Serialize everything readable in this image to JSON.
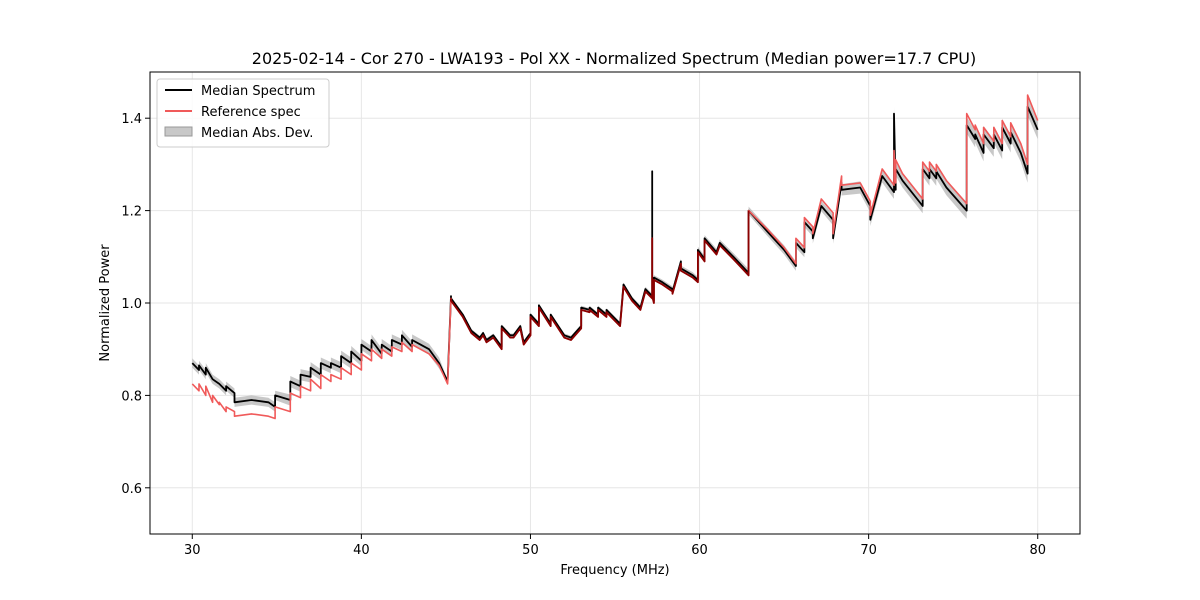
{
  "chart_data": {
    "type": "line",
    "title": "2025-02-14 - Cor 270 - LWA193 - Pol XX - Normalized Spectrum (Median power=17.7 CPU)",
    "xlabel": "Frequency (MHz)",
    "ylabel": "Normalized Power",
    "xlim": [
      27.5,
      82.5
    ],
    "ylim": [
      0.5,
      1.5
    ],
    "xticks": [
      30,
      40,
      50,
      60,
      70,
      80
    ],
    "xtick_labels": [
      "30",
      "40",
      "50",
      "60",
      "70",
      "80"
    ],
    "yticks": [
      0.6,
      0.8,
      1.0,
      1.2,
      1.4
    ],
    "ytick_labels": [
      "0.6",
      "0.8",
      "1.0",
      "1.2",
      "1.4"
    ],
    "grid": true,
    "legend_position": "top-left",
    "colors": {
      "median": "#000000",
      "reference": "#f05a5a",
      "mad_fill": "#b0b0b0",
      "overlap": "#8b0000"
    },
    "series": [
      {
        "name": "Median Spectrum",
        "x": [
          30.0,
          30.4,
          30.4,
          30.8,
          30.8,
          31.2,
          31.2,
          31.6,
          31.6,
          32.0,
          32.0,
          32.5,
          32.5,
          33.5,
          34.5,
          34.9,
          34.9,
          35.8,
          35.8,
          36.4,
          36.4,
          37.0,
          37.0,
          37.6,
          37.6,
          38.2,
          38.2,
          38.8,
          38.8,
          39.4,
          39.4,
          40.0,
          40.0,
          40.6,
          40.6,
          41.2,
          41.2,
          41.8,
          41.8,
          42.4,
          42.4,
          43.0,
          43.0,
          43.5,
          44.0,
          44.6,
          45.1,
          45.3,
          45.3,
          46.0,
          46.5,
          47.0,
          47.2,
          47.4,
          47.8,
          48.3,
          48.3,
          48.8,
          49.0,
          49.4,
          49.6,
          50.0,
          50.0,
          50.5,
          50.5,
          51.2,
          51.2,
          52.0,
          52.4,
          53.0,
          53.0,
          53.5,
          53.5,
          54.0,
          54.0,
          54.5,
          54.5,
          55.3,
          55.5,
          56.0,
          56.5,
          56.8,
          57.2,
          57.2,
          57.2,
          57.3,
          57.3,
          57.8,
          58.4,
          58.4,
          58.9,
          58.9,
          59.6,
          59.9,
          59.9,
          60.3,
          60.3,
          61.0,
          61.2,
          62.0,
          62.9,
          62.9,
          64.0,
          65.0,
          65.7,
          65.7,
          66.2,
          66.2,
          66.7,
          66.7,
          67.2,
          67.9,
          67.9,
          68.4,
          68.4,
          69.5,
          70.1,
          70.1,
          70.8,
          71.5,
          71.5,
          71.6,
          71.6,
          72.0,
          73.2,
          73.2,
          73.6,
          73.6,
          74.0,
          74.0,
          74.6,
          75.8,
          75.8,
          76.3,
          76.3,
          76.8,
          76.8,
          77.4,
          77.4,
          77.9,
          77.9,
          78.4,
          78.4,
          79.0,
          79.4,
          79.4,
          80.0
        ],
        "y": [
          0.87,
          0.855,
          0.865,
          0.845,
          0.86,
          0.835,
          0.835,
          0.825,
          0.825,
          0.81,
          0.82,
          0.805,
          0.785,
          0.79,
          0.785,
          0.775,
          0.8,
          0.79,
          0.83,
          0.82,
          0.845,
          0.84,
          0.86,
          0.845,
          0.87,
          0.86,
          0.87,
          0.86,
          0.885,
          0.87,
          0.895,
          0.875,
          0.91,
          0.895,
          0.92,
          0.89,
          0.91,
          0.895,
          0.92,
          0.91,
          0.93,
          0.905,
          0.92,
          0.91,
          0.9,
          0.87,
          0.83,
          1.015,
          1.01,
          0.975,
          0.94,
          0.925,
          0.935,
          0.92,
          0.93,
          0.905,
          0.95,
          0.93,
          0.93,
          0.95,
          0.915,
          0.935,
          0.975,
          0.955,
          0.995,
          0.955,
          0.975,
          0.93,
          0.925,
          0.95,
          0.99,
          0.985,
          0.99,
          0.975,
          0.99,
          0.975,
          0.985,
          0.955,
          1.04,
          1.01,
          0.99,
          1.03,
          1.015,
          1.285,
          1.02,
          1.005,
          1.055,
          1.045,
          1.03,
          1.025,
          1.09,
          1.075,
          1.06,
          1.05,
          1.115,
          1.095,
          1.14,
          1.11,
          1.13,
          1.1,
          1.065,
          1.2,
          1.155,
          1.115,
          1.08,
          1.13,
          1.11,
          1.175,
          1.155,
          1.14,
          1.21,
          1.18,
          1.14,
          1.26,
          1.245,
          1.25,
          1.21,
          1.18,
          1.275,
          1.24,
          1.41,
          1.245,
          1.29,
          1.265,
          1.21,
          1.29,
          1.27,
          1.29,
          1.27,
          1.285,
          1.25,
          1.2,
          1.385,
          1.355,
          1.365,
          1.325,
          1.365,
          1.335,
          1.365,
          1.33,
          1.38,
          1.345,
          1.37,
          1.325,
          1.28,
          1.425,
          1.375
        ]
      },
      {
        "name": "Reference spec",
        "x": [
          30.0,
          30.4,
          30.4,
          30.8,
          30.8,
          31.2,
          31.2,
          31.6,
          31.6,
          32.0,
          32.0,
          32.5,
          32.5,
          33.5,
          34.5,
          34.9,
          34.9,
          35.8,
          35.8,
          36.4,
          36.4,
          37.0,
          37.0,
          37.6,
          37.6,
          38.2,
          38.2,
          38.8,
          38.8,
          39.4,
          39.4,
          40.0,
          40.0,
          40.6,
          40.6,
          41.2,
          41.2,
          41.8,
          41.8,
          42.4,
          42.4,
          43.0,
          43.0,
          43.5,
          44.0,
          44.6,
          45.1,
          45.3,
          45.3,
          46.0,
          46.5,
          47.0,
          47.2,
          47.4,
          47.8,
          48.3,
          48.3,
          48.8,
          49.0,
          49.4,
          49.6,
          50.0,
          50.0,
          50.5,
          50.5,
          51.2,
          51.2,
          52.0,
          52.4,
          53.0,
          53.0,
          53.5,
          53.5,
          54.0,
          54.0,
          54.5,
          54.5,
          55.3,
          55.5,
          56.0,
          56.5,
          56.8,
          57.2,
          57.2,
          57.2,
          57.3,
          57.3,
          57.8,
          58.4,
          58.4,
          58.9,
          58.9,
          59.6,
          59.9,
          59.9,
          60.3,
          60.3,
          61.0,
          61.2,
          62.0,
          62.9,
          62.9,
          64.0,
          65.0,
          65.7,
          65.7,
          66.2,
          66.2,
          66.7,
          66.7,
          67.2,
          67.9,
          67.9,
          68.4,
          68.4,
          69.5,
          70.1,
          70.1,
          70.8,
          71.5,
          71.5,
          71.6,
          71.6,
          72.0,
          73.2,
          73.2,
          73.6,
          73.6,
          74.0,
          74.0,
          74.6,
          75.8,
          75.8,
          76.3,
          76.3,
          76.8,
          76.8,
          77.4,
          77.4,
          77.9,
          77.9,
          78.4,
          78.4,
          79.0,
          79.4,
          79.4,
          80.0
        ],
        "y": [
          0.825,
          0.81,
          0.825,
          0.8,
          0.82,
          0.785,
          0.8,
          0.78,
          0.785,
          0.765,
          0.775,
          0.765,
          0.755,
          0.76,
          0.755,
          0.75,
          0.775,
          0.765,
          0.805,
          0.795,
          0.82,
          0.81,
          0.835,
          0.815,
          0.845,
          0.83,
          0.845,
          0.835,
          0.86,
          0.845,
          0.87,
          0.855,
          0.89,
          0.875,
          0.9,
          0.88,
          0.9,
          0.885,
          0.905,
          0.895,
          0.915,
          0.895,
          0.91,
          0.9,
          0.89,
          0.865,
          0.825,
          1.01,
          1.005,
          0.97,
          0.935,
          0.92,
          0.93,
          0.915,
          0.925,
          0.9,
          0.945,
          0.925,
          0.925,
          0.945,
          0.91,
          0.93,
          0.97,
          0.95,
          0.99,
          0.95,
          0.97,
          0.925,
          0.92,
          0.945,
          0.985,
          0.98,
          0.985,
          0.97,
          0.985,
          0.97,
          0.98,
          0.95,
          1.035,
          1.005,
          0.985,
          1.025,
          1.01,
          1.14,
          1.015,
          1.0,
          1.05,
          1.04,
          1.025,
          1.02,
          1.085,
          1.07,
          1.055,
          1.045,
          1.11,
          1.09,
          1.135,
          1.105,
          1.125,
          1.095,
          1.06,
          1.2,
          1.16,
          1.12,
          1.085,
          1.14,
          1.12,
          1.185,
          1.165,
          1.15,
          1.225,
          1.195,
          1.15,
          1.275,
          1.255,
          1.26,
          1.22,
          1.19,
          1.29,
          1.255,
          1.33,
          1.26,
          1.31,
          1.28,
          1.225,
          1.305,
          1.285,
          1.305,
          1.285,
          1.3,
          1.265,
          1.215,
          1.41,
          1.375,
          1.385,
          1.345,
          1.38,
          1.35,
          1.38,
          1.345,
          1.395,
          1.36,
          1.39,
          1.345,
          1.3,
          1.45,
          1.395
        ]
      },
      {
        "name": "Median Abs. Dev.",
        "type": "band",
        "x": [
          30.0,
          35.0,
          35.0,
          45.0,
          45.0,
          55.0,
          62.0,
          68.0,
          72.0,
          76.0,
          80.0
        ],
        "dev": [
          0.01,
          0.01,
          0.012,
          0.012,
          0.004,
          0.004,
          0.008,
          0.012,
          0.015,
          0.018,
          0.02
        ]
      }
    ]
  }
}
